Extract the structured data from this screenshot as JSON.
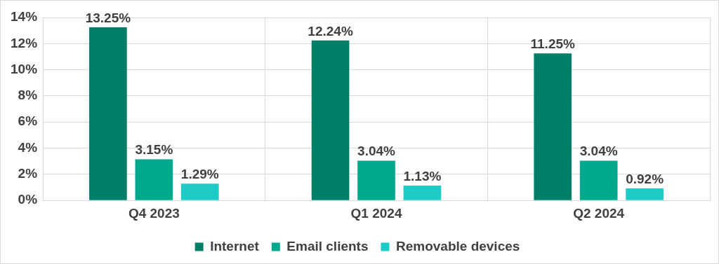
{
  "chart_data": {
    "type": "bar",
    "categories": [
      "Q4 2023",
      "Q1 2024",
      "Q2 2024"
    ],
    "series": [
      {
        "name": "Internet",
        "color": "#007f68",
        "values": [
          13.25,
          12.24,
          11.25
        ],
        "value_labels": [
          "13.25%",
          "12.24%",
          "11.25%"
        ]
      },
      {
        "name": "Email clients",
        "color": "#00a88e",
        "values": [
          3.15,
          3.04,
          3.04
        ],
        "value_labels": [
          "3.15%",
          "3.04%",
          "3.04%"
        ]
      },
      {
        "name": "Removable devices",
        "color": "#1fcbc6",
        "values": [
          1.29,
          1.13,
          0.92
        ],
        "value_labels": [
          "1.29%",
          "1.13%",
          "0.92%"
        ]
      }
    ],
    "ylim": [
      0,
      14
    ],
    "yticks": [
      {
        "value": 0,
        "label": "0%"
      },
      {
        "value": 2,
        "label": "2%"
      },
      {
        "value": 4,
        "label": "4%"
      },
      {
        "value": 6,
        "label": "6%"
      },
      {
        "value": 8,
        "label": "8%"
      },
      {
        "value": 10,
        "label": "10%"
      },
      {
        "value": 12,
        "label": "12%"
      },
      {
        "value": 14,
        "label": "14%"
      }
    ],
    "grid": true,
    "legend": "bottom",
    "data_labels": true
  }
}
